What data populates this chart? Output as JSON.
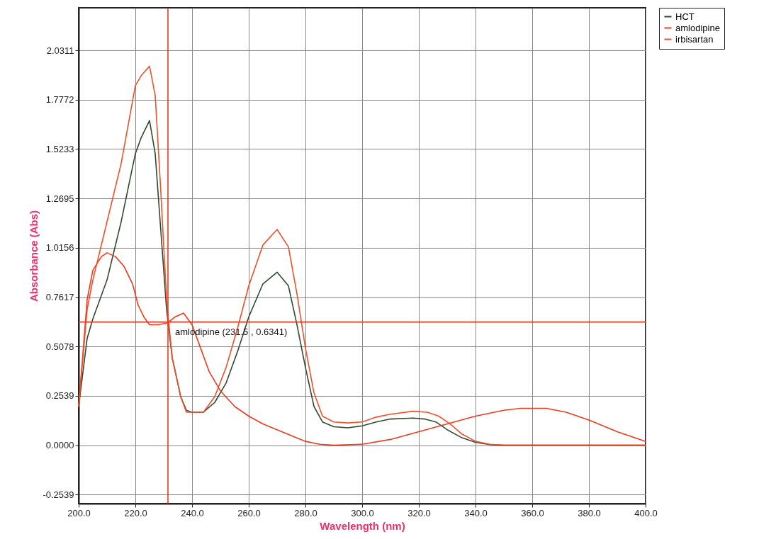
{
  "chart_data": {
    "type": "line",
    "xlabel": "Wavelength (nm)",
    "ylabel": "Absorbance (Abs)",
    "xlim": [
      200,
      400
    ],
    "ylim": [
      -0.3,
      2.25
    ],
    "xticks": [
      {
        "value": 200,
        "label": "200.0"
      },
      {
        "value": 220,
        "label": "220.0"
      },
      {
        "value": 240,
        "label": "240.0"
      },
      {
        "value": 260,
        "label": "260.0"
      },
      {
        "value": 280,
        "label": "280.0"
      },
      {
        "value": 300,
        "label": "300.0"
      },
      {
        "value": 320,
        "label": "320.0"
      },
      {
        "value": 340,
        "label": "340.0"
      },
      {
        "value": 360,
        "label": "360.0"
      },
      {
        "value": 380,
        "label": "380.0"
      },
      {
        "value": 400,
        "label": "400.0"
      }
    ],
    "yticks": [
      -0.2539,
      {
        "value": 0,
        "label": "0.0000"
      },
      0.2539,
      0.5078,
      0.7617,
      1.0156,
      1.2695,
      1.5233,
      1.7772,
      2.0311
    ],
    "grid": true,
    "legend": "top right",
    "marker": "none",
    "line_style": "solid",
    "series": [
      {
        "name": "HCT",
        "color": "#2f4a2f",
        "x": [
          200,
          203,
          205,
          210,
          215,
          220,
          222,
          225,
          227,
          229,
          231,
          233,
          236,
          238,
          240,
          244,
          248,
          252,
          256,
          260,
          265,
          270,
          274,
          277,
          280,
          283,
          286,
          290,
          295,
          300,
          305,
          310,
          318,
          322,
          326,
          330,
          335,
          340,
          345,
          350,
          360,
          380,
          400
        ],
        "values": [
          0.2,
          0.55,
          0.65,
          0.85,
          1.15,
          1.5,
          1.58,
          1.67,
          1.5,
          1.1,
          0.7,
          0.45,
          0.25,
          0.18,
          0.17,
          0.17,
          0.22,
          0.32,
          0.48,
          0.66,
          0.83,
          0.89,
          0.82,
          0.62,
          0.4,
          0.2,
          0.12,
          0.095,
          0.09,
          0.1,
          0.12,
          0.135,
          0.14,
          0.135,
          0.12,
          0.08,
          0.04,
          0.015,
          0.003,
          0,
          0,
          0,
          0
        ]
      },
      {
        "name": "amlodipine",
        "color": "#f03a1e",
        "x": [
          200,
          203,
          205,
          208,
          210,
          213,
          216,
          219,
          221,
          223,
          225,
          228,
          231.5,
          234,
          237,
          240,
          243,
          246,
          250,
          255,
          260,
          265,
          270,
          275,
          280,
          285,
          290,
          300,
          310,
          320,
          330,
          340,
          350,
          356,
          365,
          372,
          380,
          390,
          400
        ],
        "values": [
          0.2,
          0.75,
          0.9,
          0.97,
          0.99,
          0.97,
          0.92,
          0.83,
          0.72,
          0.66,
          0.62,
          0.62,
          0.63,
          0.66,
          0.68,
          0.62,
          0.5,
          0.38,
          0.28,
          0.2,
          0.15,
          0.11,
          0.08,
          0.05,
          0.02,
          0.005,
          0,
          0.005,
          0.03,
          0.07,
          0.11,
          0.15,
          0.18,
          0.19,
          0.19,
          0.17,
          0.13,
          0.07,
          0.02
        ]
      },
      {
        "name": "irbisartan",
        "color": "#f0502a",
        "x": [
          200,
          203,
          205,
          210,
          215,
          220,
          222,
          225,
          227,
          229,
          231,
          233,
          236,
          238,
          244,
          248,
          252,
          256,
          260,
          265,
          270,
          274,
          277,
          280,
          283,
          286,
          290,
          295,
          300,
          305,
          310,
          318,
          323,
          327,
          331,
          335,
          340,
          345,
          350,
          400
        ],
        "values": [
          0.2,
          0.7,
          0.85,
          1.15,
          1.45,
          1.85,
          1.9,
          1.95,
          1.8,
          1.3,
          0.75,
          0.45,
          0.25,
          0.17,
          0.17,
          0.25,
          0.4,
          0.6,
          0.82,
          1.03,
          1.11,
          1.02,
          0.78,
          0.5,
          0.27,
          0.15,
          0.12,
          0.115,
          0.12,
          0.145,
          0.16,
          0.175,
          0.17,
          0.15,
          0.11,
          0.06,
          0.02,
          0.005,
          0,
          0
        ]
      }
    ],
    "ref_lines": [
      {
        "axis": "x",
        "value": 231.5,
        "color": "#f03a1e"
      },
      {
        "axis": "y",
        "value": 0.6341,
        "color": "#f03a1e"
      }
    ],
    "annotations": [
      {
        "text": "amlodipine (231.5 , 0.6341)",
        "x": 231.5,
        "y": 0.6341
      }
    ]
  }
}
